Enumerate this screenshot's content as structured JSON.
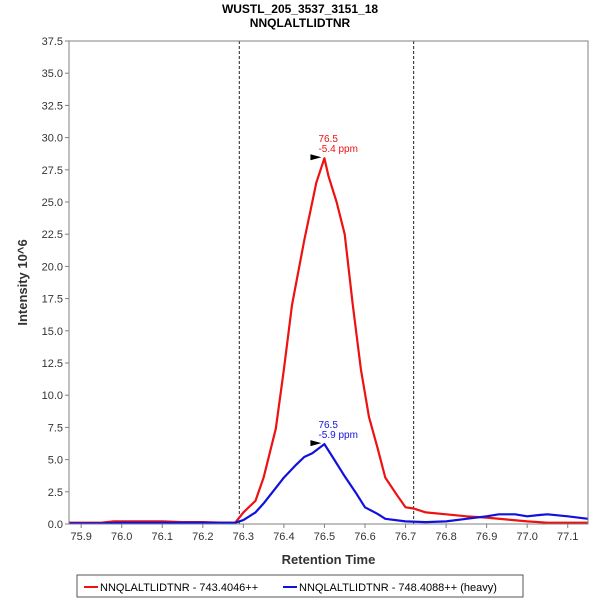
{
  "chart_data": {
    "type": "line",
    "title": "WUSTL_205_3537_3151_18",
    "subtitle": "NNQLALTLIDTNR",
    "xlabel": "Retention Time",
    "ylabel": "Intensity 10^6",
    "xlim": [
      75.87,
      77.15
    ],
    "ylim": [
      0,
      37.5
    ],
    "x_ticks": [
      "75.9",
      "76.0",
      "76.1",
      "76.2",
      "76.3",
      "76.4",
      "76.5",
      "76.6",
      "76.7",
      "76.8",
      "76.9",
      "77.0",
      "77.1"
    ],
    "y_ticks": [
      "0.0",
      "2.5",
      "5.0",
      "7.5",
      "10.0",
      "12.5",
      "15.0",
      "17.5",
      "20.0",
      "22.5",
      "25.0",
      "27.5",
      "30.0",
      "32.5",
      "35.0",
      "37.5"
    ],
    "boundaries": [
      76.29,
      76.72
    ],
    "grid": false,
    "legend_position": "bottom",
    "series": [
      {
        "name": "NNQLALTLIDTNR - 743.4046++",
        "color": "#ee1111",
        "x": [
          75.87,
          75.9,
          75.95,
          75.98,
          76.0,
          76.05,
          76.1,
          76.15,
          76.2,
          76.25,
          76.28,
          76.3,
          76.33,
          76.35,
          76.38,
          76.4,
          76.42,
          76.45,
          76.47,
          76.48,
          76.5,
          76.51,
          76.53,
          76.55,
          76.57,
          76.59,
          76.61,
          76.63,
          76.65,
          76.68,
          76.7,
          76.72,
          76.75,
          76.8,
          76.85,
          76.9,
          76.95,
          77.0,
          77.05,
          77.1,
          77.15
        ],
        "y": [
          0.1,
          0.1,
          0.1,
          0.2,
          0.2,
          0.2,
          0.2,
          0.15,
          0.15,
          0.1,
          0.1,
          0.9,
          1.8,
          3.6,
          7.4,
          12.0,
          17.0,
          22.0,
          25.0,
          26.5,
          28.4,
          27.0,
          25.0,
          22.5,
          17.0,
          12.0,
          8.3,
          6.0,
          3.6,
          2.2,
          1.3,
          1.2,
          0.9,
          0.75,
          0.6,
          0.5,
          0.35,
          0.2,
          0.1,
          0.1,
          0.1
        ]
      },
      {
        "name": "NNQLALTLIDTNR - 748.4088++ (heavy)",
        "color": "#1111dd",
        "x": [
          75.87,
          75.95,
          76.0,
          76.1,
          76.15,
          76.2,
          76.25,
          76.28,
          76.3,
          76.33,
          76.35,
          76.38,
          76.4,
          76.43,
          76.45,
          76.47,
          76.5,
          76.52,
          76.55,
          76.58,
          76.6,
          76.63,
          76.65,
          76.7,
          76.75,
          76.8,
          76.85,
          76.9,
          76.93,
          76.97,
          77.0,
          77.03,
          77.05,
          77.1,
          77.15
        ],
        "y": [
          0.05,
          0.05,
          0.1,
          0.1,
          0.1,
          0.1,
          0.1,
          0.1,
          0.3,
          0.9,
          1.6,
          2.8,
          3.6,
          4.6,
          5.2,
          5.5,
          6.2,
          5.2,
          3.7,
          2.3,
          1.3,
          0.8,
          0.4,
          0.2,
          0.15,
          0.2,
          0.4,
          0.6,
          0.75,
          0.75,
          0.6,
          0.7,
          0.75,
          0.6,
          0.4
        ]
      }
    ],
    "annotations": [
      {
        "series": 0,
        "x": 76.5,
        "y": 28.4,
        "lines": [
          "76.5",
          "-5.4 ppm"
        ]
      },
      {
        "series": 1,
        "x": 76.5,
        "y": 6.2,
        "lines": [
          "76.5",
          "-5.9 ppm"
        ]
      }
    ]
  }
}
